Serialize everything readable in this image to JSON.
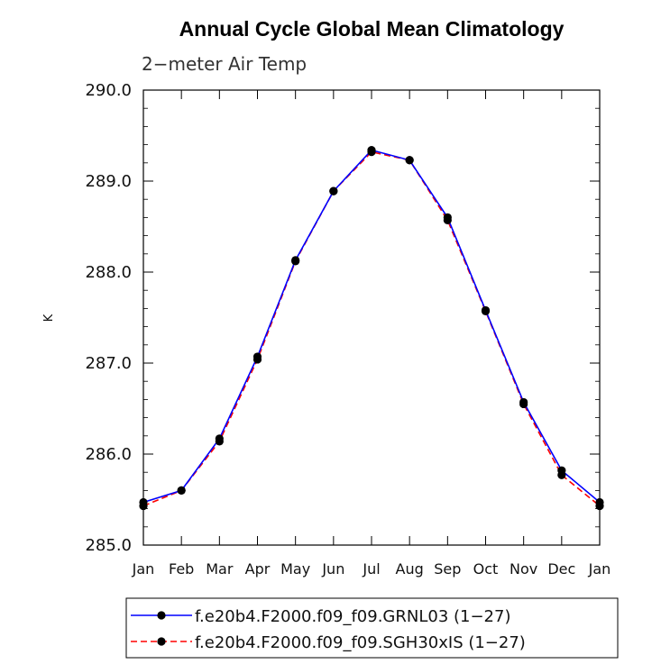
{
  "chart_data": {
    "type": "line",
    "title": "Annual Cycle Global Mean Climatology",
    "subtitle": "2−meter Air Temp",
    "ylabel": "K",
    "xlabel": "",
    "categories": [
      "Jan",
      "Feb",
      "Mar",
      "Apr",
      "May",
      "Jun",
      "Jul",
      "Aug",
      "Sep",
      "Oct",
      "Nov",
      "Dec",
      "Jan"
    ],
    "ylim": [
      285.0,
      290.0
    ],
    "yticks": [
      "285.0",
      "286.0",
      "287.0",
      "288.0",
      "289.0",
      "290.0"
    ],
    "grid": false,
    "legend_position": "bottom",
    "series": [
      {
        "name": "f.e20b4.F2000.f09_f09.GRNL03 (1−27)",
        "color": "#0000ff",
        "dash": "solid",
        "marker": "filled-circle",
        "values": [
          285.47,
          285.6,
          286.17,
          287.07,
          288.13,
          288.89,
          289.34,
          289.23,
          288.6,
          287.58,
          286.57,
          285.82,
          285.47
        ]
      },
      {
        "name": "f.e20b4.F2000.f09_f09.SGH30xIS (1−27)",
        "color": "#ff0000",
        "dash": "dashed",
        "marker": "filled-circle",
        "values": [
          285.43,
          285.6,
          286.14,
          287.04,
          288.12,
          288.89,
          289.32,
          289.23,
          288.57,
          287.57,
          286.55,
          285.77,
          285.43
        ]
      }
    ]
  }
}
